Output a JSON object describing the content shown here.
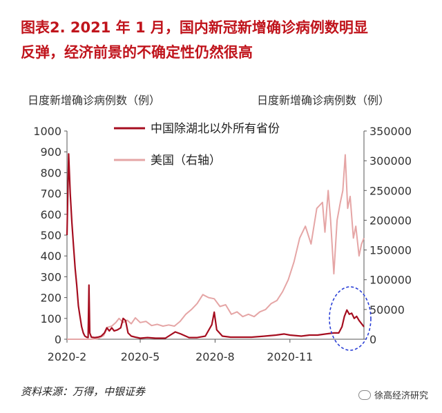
{
  "title": {
    "line1": "图表2.  2021 年 1 月，国内新冠新增确诊病例数明显",
    "line2": "反弹，经济前景的不确定性仍然很高"
  },
  "left_axis_title": "日度新增确诊病例数（例）",
  "right_axis_title": "日度新增确诊病例数（例）",
  "source": "资料来源：万得，中银证券",
  "brand": "徐高经济研究",
  "chart_data": {
    "type": "line",
    "x_tick_labels": [
      "2020-2",
      "2020-5",
      "2020-8",
      "2020-11"
    ],
    "x_tick_dates": [
      "2020-02-01",
      "2020-05-01",
      "2020-08-01",
      "2020-11-01"
    ],
    "x_range": [
      "2020-02-01",
      "2021-01-31"
    ],
    "left_axis": {
      "ylim": [
        0,
        1000
      ],
      "ticks": [
        "0",
        "100",
        "200",
        "300",
        "400",
        "500",
        "600",
        "700",
        "800",
        "900",
        "1000"
      ]
    },
    "right_axis": {
      "ylim": [
        0,
        350000
      ],
      "ticks": [
        "0",
        "50000",
        "100000",
        "150000",
        "200000",
        "250000",
        "300000",
        "350000"
      ]
    },
    "legend_position": "top-center",
    "series": [
      {
        "name": "中国除湖北以外所有省份",
        "axis": "left",
        "color": "#a50d1f",
        "points": [
          [
            "2020-02-01",
            500
          ],
          [
            "2020-02-03",
            890
          ],
          [
            "2020-02-05",
            700
          ],
          [
            "2020-02-07",
            560
          ],
          [
            "2020-02-09",
            450
          ],
          [
            "2020-02-11",
            340
          ],
          [
            "2020-02-13",
            260
          ],
          [
            "2020-02-15",
            160
          ],
          [
            "2020-02-17",
            110
          ],
          [
            "2020-02-19",
            60
          ],
          [
            "2020-02-21",
            30
          ],
          [
            "2020-02-23",
            15
          ],
          [
            "2020-02-25",
            10
          ],
          [
            "2020-02-27",
            8
          ],
          [
            "2020-02-28",
            260
          ],
          [
            "2020-02-29",
            30
          ],
          [
            "2020-03-02",
            10
          ],
          [
            "2020-03-06",
            8
          ],
          [
            "2020-03-10",
            10
          ],
          [
            "2020-03-14",
            15
          ],
          [
            "2020-03-18",
            30
          ],
          [
            "2020-03-21",
            55
          ],
          [
            "2020-03-24",
            40
          ],
          [
            "2020-03-27",
            55
          ],
          [
            "2020-03-30",
            40
          ],
          [
            "2020-04-03",
            45
          ],
          [
            "2020-04-07",
            55
          ],
          [
            "2020-04-10",
            100
          ],
          [
            "2020-04-13",
            90
          ],
          [
            "2020-04-16",
            30
          ],
          [
            "2020-04-20",
            15
          ],
          [
            "2020-04-25",
            10
          ],
          [
            "2020-05-01",
            5
          ],
          [
            "2020-05-10",
            8
          ],
          [
            "2020-05-20",
            5
          ],
          [
            "2020-06-01",
            5
          ],
          [
            "2020-06-13",
            35
          ],
          [
            "2020-06-20",
            25
          ],
          [
            "2020-06-30",
            8
          ],
          [
            "2020-07-10",
            8
          ],
          [
            "2020-07-20",
            15
          ],
          [
            "2020-07-28",
            70
          ],
          [
            "2020-07-31",
            130
          ],
          [
            "2020-08-03",
            45
          ],
          [
            "2020-08-10",
            15
          ],
          [
            "2020-08-20",
            10
          ],
          [
            "2020-09-01",
            10
          ],
          [
            "2020-09-15",
            10
          ],
          [
            "2020-10-01",
            15
          ],
          [
            "2020-10-15",
            20
          ],
          [
            "2020-10-25",
            25
          ],
          [
            "2020-11-01",
            20
          ],
          [
            "2020-11-15",
            15
          ],
          [
            "2020-11-25",
            20
          ],
          [
            "2020-12-05",
            20
          ],
          [
            "2020-12-15",
            25
          ],
          [
            "2020-12-25",
            30
          ],
          [
            "2020-12-31",
            30
          ],
          [
            "2021-01-04",
            60
          ],
          [
            "2021-01-07",
            110
          ],
          [
            "2021-01-10",
            140
          ],
          [
            "2021-01-13",
            120
          ],
          [
            "2021-01-16",
            125
          ],
          [
            "2021-01-19",
            100
          ],
          [
            "2021-01-22",
            110
          ],
          [
            "2021-01-25",
            90
          ],
          [
            "2021-01-28",
            75
          ],
          [
            "2021-01-31",
            60
          ]
        ]
      },
      {
        "name": "美国（右轴）",
        "axis": "right",
        "color": "#e5a5a5",
        "points": [
          [
            "2020-02-01",
            0
          ],
          [
            "2020-03-01",
            0
          ],
          [
            "2020-03-10",
            1000
          ],
          [
            "2020-03-17",
            6000
          ],
          [
            "2020-03-22",
            20000
          ],
          [
            "2020-03-27",
            22000
          ],
          [
            "2020-04-01",
            28000
          ],
          [
            "2020-04-05",
            35000
          ],
          [
            "2020-04-10",
            28000
          ],
          [
            "2020-04-15",
            32000
          ],
          [
            "2020-04-20",
            26000
          ],
          [
            "2020-04-25",
            36000
          ],
          [
            "2020-05-01",
            28000
          ],
          [
            "2020-05-08",
            30000
          ],
          [
            "2020-05-15",
            23000
          ],
          [
            "2020-05-22",
            25000
          ],
          [
            "2020-05-29",
            22000
          ],
          [
            "2020-06-05",
            24000
          ],
          [
            "2020-06-12",
            22000
          ],
          [
            "2020-06-19",
            30000
          ],
          [
            "2020-06-26",
            42000
          ],
          [
            "2020-07-03",
            50000
          ],
          [
            "2020-07-10",
            60000
          ],
          [
            "2020-07-17",
            75000
          ],
          [
            "2020-07-24",
            70000
          ],
          [
            "2020-07-31",
            68000
          ],
          [
            "2020-08-07",
            55000
          ],
          [
            "2020-08-14",
            58000
          ],
          [
            "2020-08-21",
            42000
          ],
          [
            "2020-08-28",
            46000
          ],
          [
            "2020-09-04",
            38000
          ],
          [
            "2020-09-11",
            42000
          ],
          [
            "2020-09-18",
            38000
          ],
          [
            "2020-09-25",
            46000
          ],
          [
            "2020-10-02",
            50000
          ],
          [
            "2020-10-09",
            60000
          ],
          [
            "2020-10-16",
            65000
          ],
          [
            "2020-10-23",
            80000
          ],
          [
            "2020-10-30",
            100000
          ],
          [
            "2020-11-06",
            130000
          ],
          [
            "2020-11-13",
            170000
          ],
          [
            "2020-11-20",
            190000
          ],
          [
            "2020-11-27",
            160000
          ],
          [
            "2020-12-04",
            220000
          ],
          [
            "2020-12-11",
            230000
          ],
          [
            "2020-12-14",
            180000
          ],
          [
            "2020-12-18",
            250000
          ],
          [
            "2020-12-21",
            200000
          ],
          [
            "2020-12-25",
            110000
          ],
          [
            "2020-12-29",
            200000
          ],
          [
            "2021-01-02",
            230000
          ],
          [
            "2021-01-05",
            250000
          ],
          [
            "2021-01-08",
            310000
          ],
          [
            "2021-01-11",
            220000
          ],
          [
            "2021-01-14",
            240000
          ],
          [
            "2021-01-18",
            170000
          ],
          [
            "2021-01-21",
            190000
          ],
          [
            "2021-01-25",
            140000
          ],
          [
            "2021-01-28",
            160000
          ],
          [
            "2021-01-31",
            170000
          ]
        ]
      }
    ]
  }
}
